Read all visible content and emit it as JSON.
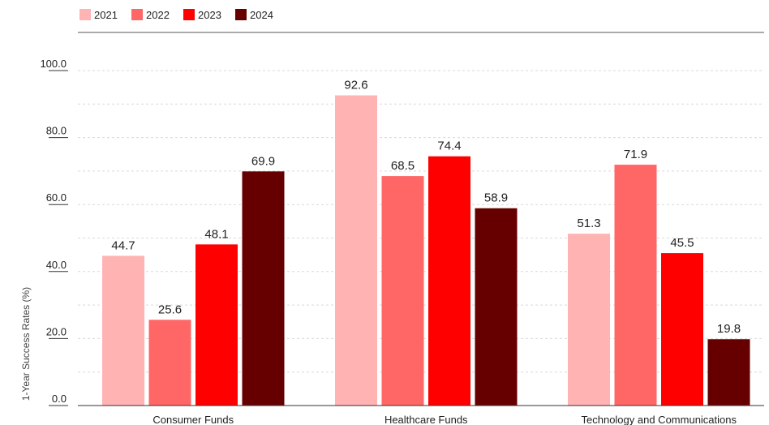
{
  "chart_data": {
    "type": "bar",
    "title": "",
    "xlabel": "",
    "ylabel": "1-Year Success Rates (%)",
    "ylim": [
      0,
      100
    ],
    "yticks": [
      "0.0",
      "20.0",
      "40.0",
      "60.0",
      "80.0",
      "100.0"
    ],
    "grid": true,
    "legend_position": "top-left",
    "categories": [
      "Consumer Funds",
      "Healthcare Funds",
      "Technology and Communications"
    ],
    "series": [
      {
        "name": "2021",
        "color": "#ffb3b3",
        "values": [
          44.7,
          92.6,
          51.3
        ]
      },
      {
        "name": "2022",
        "color": "#ff6666",
        "values": [
          25.6,
          68.5,
          71.9
        ]
      },
      {
        "name": "2023",
        "color": "#ff0000",
        "values": [
          48.1,
          74.4,
          45.5
        ]
      },
      {
        "name": "2024",
        "color": "#660000",
        "values": [
          69.9,
          58.9,
          19.8
        ]
      }
    ]
  }
}
